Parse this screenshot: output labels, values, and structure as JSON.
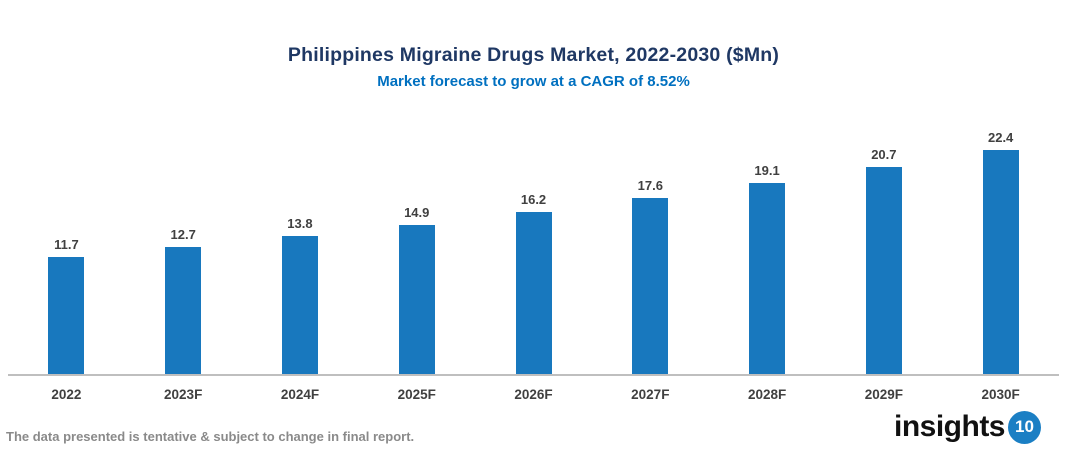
{
  "header": {
    "title": "Philippines Migraine Drugs Market, 2022-2030 ($Mn)",
    "subtitle": "Market forecast to grow at a CAGR of 8.52%"
  },
  "chart_data": {
    "type": "bar",
    "categories": [
      "2022",
      "2023F",
      "2024F",
      "2025F",
      "2026F",
      "2027F",
      "2028F",
      "2029F",
      "2030F"
    ],
    "values": [
      11.7,
      12.7,
      13.8,
      14.9,
      16.2,
      17.6,
      19.1,
      20.7,
      22.4
    ],
    "title": "Philippines Migraine Drugs Market, 2022-2030 ($Mn)",
    "subtitle": "Market forecast to grow at a CAGR of 8.52%",
    "xlabel": "",
    "ylabel": "",
    "ylim": [
      0,
      24
    ],
    "grid": false,
    "legend": false,
    "value_labels": true
  },
  "footer": {
    "disclaimer": "The data presented is tentative & subject to change in final report.",
    "logo_text": "insights",
    "logo_badge": "10"
  },
  "colors": {
    "title": "#1f3864",
    "subtitle": "#0070c0",
    "bar": "#1878be",
    "axis_line": "#bfbfbf",
    "label": "#404040",
    "footer_text": "#8a8a8a",
    "logo_badge": "#1b7fc4"
  }
}
